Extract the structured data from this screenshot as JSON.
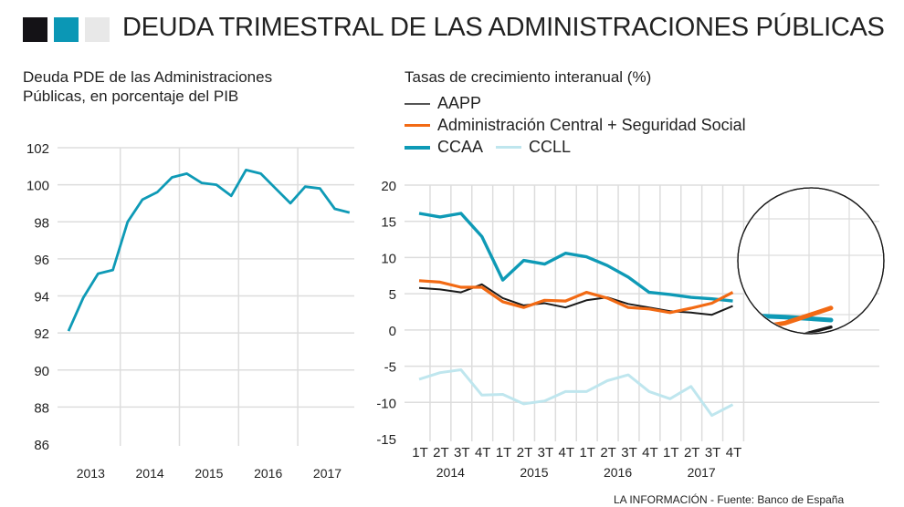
{
  "header": {
    "title": "DEUDA TRIMESTRAL DE LAS ADMINISTRACIONES PÚBLICAS",
    "squares": [
      "#141216",
      "#0b97b5",
      "#e8e8e8"
    ]
  },
  "footer": {
    "credit": "LA INFORMACIÓN - Fuente: Banco de España"
  },
  "colors": {
    "debt_line": "#0e9ab6",
    "AAPP": "#1a1a1a",
    "AC_SS": "#f26a14",
    "CCAA": "#0e9ab6",
    "CCLL": "#bfe6ee",
    "grid": "#dddddd"
  },
  "chart_data": [
    {
      "type": "line",
      "title_lines": [
        "Deuda PDE de las Administraciones",
        "Públicas, en porcentaje del PIB"
      ],
      "xlabel": "",
      "ylabel": "",
      "x_tick_labels": [
        "2013",
        "2014",
        "2015",
        "2016",
        "2017"
      ],
      "y_ticks": [
        102,
        100,
        98,
        96,
        94,
        92,
        90,
        88,
        86
      ],
      "ylim": [
        86,
        102
      ],
      "grid": true,
      "x": [
        "1T 2013",
        "2T 2013",
        "3T 2013",
        "4T 2013",
        "1T 2014",
        "2T 2014",
        "3T 2014",
        "4T 2014",
        "1T 2015",
        "2T 2015",
        "3T 2015",
        "4T 2015",
        "1T 2016",
        "2T 2016",
        "3T 2016",
        "4T 2016",
        "1T 2017",
        "2T 2017",
        "3T 2017",
        "4T 2017"
      ],
      "series": [
        {
          "name": "Deuda PDE (% PIB)",
          "values": [
            92.1,
            93.9,
            95.2,
            95.4,
            98.0,
            99.2,
            99.6,
            100.4,
            100.6,
            100.1,
            100.0,
            99.4,
            100.8,
            100.6,
            99.8,
            99.0,
            99.9,
            99.8,
            98.7,
            98.5
          ]
        }
      ]
    },
    {
      "type": "line",
      "title": "Tasas de crecimiento interanual (%)",
      "xlabel": "",
      "ylabel": "",
      "x_tick_labels": [
        "1T",
        "2T",
        "3T",
        "4T",
        "1T",
        "2T",
        "3T",
        "4T",
        "1T",
        "2T",
        "3T",
        "4T",
        "1T",
        "2T",
        "3T",
        "4T"
      ],
      "x_year_labels": [
        "2014",
        "2015",
        "2016",
        "2017"
      ],
      "y_ticks": [
        20,
        15,
        10,
        5,
        0,
        -5,
        -10,
        -15
      ],
      "ylim": [
        -15,
        20
      ],
      "grid": true,
      "legend_position": "top-left",
      "legend": [
        {
          "key": "AAPP",
          "label": "AAPP"
        },
        {
          "key": "AC_SS",
          "label": "Administración Central + Seguridad Social"
        },
        {
          "key": "CCAA",
          "label": "CCAA"
        },
        {
          "key": "CCLL",
          "label": "CCLL"
        }
      ],
      "series": [
        {
          "name": "AAPP",
          "key": "AAPP",
          "values": [
            5.8,
            5.6,
            5.2,
            6.3,
            4.4,
            3.4,
            3.7,
            3.1,
            4.1,
            4.5,
            3.6,
            3.1,
            2.6,
            2.4,
            2.1,
            3.3
          ]
        },
        {
          "name": "Administración Central + Seguridad Social",
          "key": "AC_SS",
          "values": [
            6.8,
            6.6,
            5.9,
            5.9,
            3.9,
            3.1,
            4.1,
            4.0,
            5.2,
            4.4,
            3.1,
            2.9,
            2.4,
            3.0,
            3.7,
            5.2
          ]
        },
        {
          "name": "CCAA",
          "key": "CCAA",
          "values": [
            16.1,
            15.6,
            16.1,
            12.9,
            6.9,
            9.6,
            9.1,
            10.6,
            10.1,
            8.9,
            7.3,
            5.2,
            4.9,
            4.5,
            4.3,
            4.0
          ]
        },
        {
          "name": "CCLL",
          "key": "CCLL",
          "values": [
            -6.8,
            -5.9,
            -5.5,
            -9.0,
            -8.9,
            -10.2,
            -9.8,
            -8.5,
            -8.5,
            -7.0,
            -6.2,
            -8.5,
            -9.5,
            -7.8,
            -11.8,
            -10.3
          ]
        }
      ],
      "annotations": [
        {
          "type": "magnifier",
          "description": "Zoom on last three quarters (2T-4T 2017)",
          "quarters": [
            "2T 2017",
            "3T 2017",
            "4T 2017"
          ]
        }
      ]
    }
  ]
}
